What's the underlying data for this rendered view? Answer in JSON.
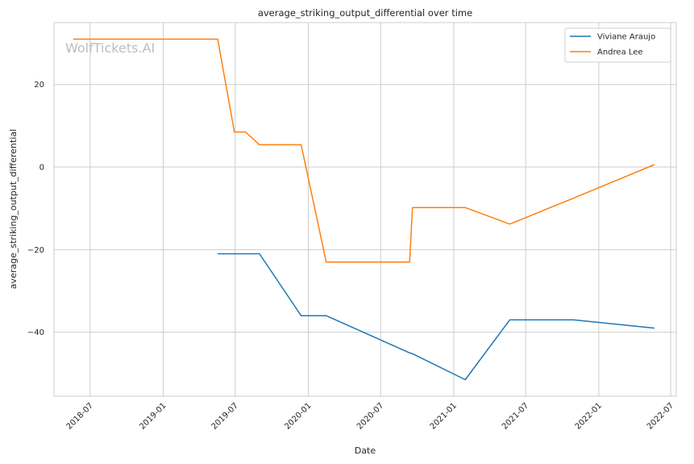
{
  "chart_data": {
    "type": "line",
    "title": "average_striking_output_differential over time",
    "xlabel": "Date",
    "ylabel": "average_striking_output_differential",
    "watermark": "WolfTickets.AI",
    "grid": true,
    "legend_position": "top-right",
    "x_ticks": [
      "2018-07",
      "2019-01",
      "2019-07",
      "2020-01",
      "2020-07",
      "2021-01",
      "2021-07",
      "2022-01",
      "2022-07"
    ],
    "y_ticks": [
      -40,
      -20,
      0,
      20
    ],
    "xlim": [
      "2018-04-01",
      "2022-07-15"
    ],
    "ylim": [
      -55.5,
      35
    ],
    "series": [
      {
        "name": "Viviane Araujo",
        "color": "#1f77b4",
        "points": [
          [
            "2019-05-18",
            -21
          ],
          [
            "2019-08-31",
            -21
          ],
          [
            "2019-12-14",
            -36
          ],
          [
            "2020-02-15",
            -36
          ],
          [
            "2020-09-12",
            -45
          ],
          [
            "2020-09-19",
            -45.2
          ],
          [
            "2021-01-30",
            -51.5
          ],
          [
            "2021-05-22",
            -37
          ],
          [
            "2021-10-30",
            -37
          ],
          [
            "2022-05-21",
            -39
          ]
        ]
      },
      {
        "name": "Andrea Lee",
        "color": "#ff7f0e",
        "points": [
          [
            "2018-05-19",
            31
          ],
          [
            "2019-05-18",
            31
          ],
          [
            "2019-06-29",
            8.5
          ],
          [
            "2019-07-27",
            8.5
          ],
          [
            "2019-08-31",
            5.4
          ],
          [
            "2019-12-14",
            5.4
          ],
          [
            "2020-02-15",
            -23
          ],
          [
            "2020-09-12",
            -23
          ],
          [
            "2020-09-19",
            -9.8
          ],
          [
            "2021-01-30",
            -9.8
          ],
          [
            "2021-05-22",
            -13.8
          ],
          [
            "2021-10-30",
            -7.5
          ],
          [
            "2022-05-21",
            0.6
          ]
        ]
      }
    ]
  }
}
